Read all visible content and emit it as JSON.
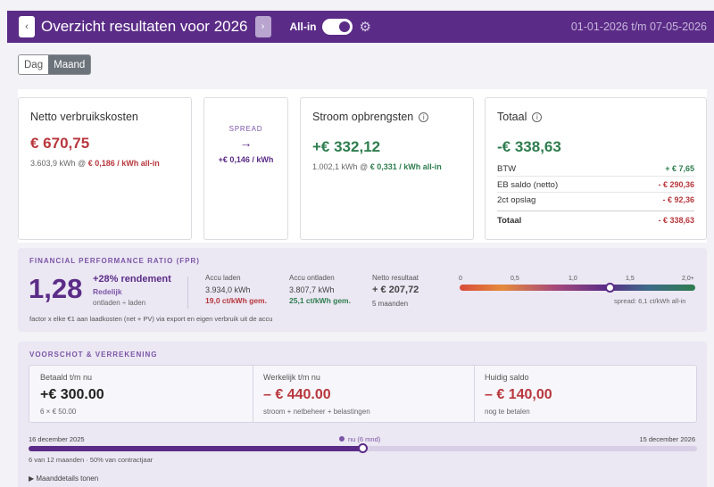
{
  "header": {
    "title": "Overzicht resultaten voor 2026",
    "prev_glyph": "‹",
    "next_glyph": "›",
    "allin_label": "All-in",
    "allin_on": true,
    "date_range": "01-01-2026 t/m 07-05-2026",
    "accent": "#5b2c87"
  },
  "view_toggle": {
    "options": [
      "Dag",
      "Maand"
    ],
    "selected": "Maand"
  },
  "cards": {
    "netto": {
      "title": "Netto verbruikskosten",
      "value": "€ 670,75",
      "kwh": "3.603,9 kWh @",
      "rate": "€ 0,186 / kWh all-in"
    },
    "spread": {
      "label": "SPREAD",
      "arrow": "→",
      "value": "+€ 0,146 / kWh"
    },
    "stroom": {
      "title": "Stroom opbrengsten",
      "value": "+€ 332,12",
      "kwh": "1.002,1 kWh @",
      "rate": "€ 0,331 / kWh all-in"
    },
    "totaal": {
      "title": "Totaal",
      "value": "-€ 338,63",
      "rows": [
        {
          "label": "BTW",
          "value": "+ € 7,65"
        },
        {
          "label": "EB saldo (netto)",
          "value": "- € 290,36"
        },
        {
          "label": "2ct opslag",
          "value": "- € 92,36"
        }
      ],
      "total_label": "Totaal",
      "total_value": "- € 338,63"
    }
  },
  "fpr": {
    "section_title": "FINANCIAL PERFORMANCE RATIO (FPR)",
    "value": "1,28",
    "rendement": "+28% rendement",
    "label": "Redelijk",
    "sub": "ontladen ÷ laden",
    "metrics": [
      {
        "head": "Accu laden",
        "value": "3.934,0 kWh",
        "sub": "19,0 ct/kWh gem."
      },
      {
        "head": "Accu ontladen",
        "value": "3.807,7 kWh",
        "sub": "25,1 ct/kWh gem."
      },
      {
        "head": "Netto resultaat",
        "value": "+ € 207,72",
        "sub": "5 maanden"
      }
    ],
    "scale_labels": [
      "0",
      "0,5",
      "1,0",
      "1,5",
      "2,0+"
    ],
    "spread_note": "spread: 6,1 ct/kWh all-in",
    "footnote": "factor x elke €1 aan laadkosten (net + PV) via export en eigen verbruik uit de accu"
  },
  "voorschot": {
    "section_title": "VOORSCHOT & VERREKENING",
    "columns": [
      {
        "head": "Betaald t/m nu",
        "value": "+€ 300.00",
        "sub": "6 × € 50.00"
      },
      {
        "head": "Werkelijk t/m nu",
        "value": "– € 440.00",
        "sub": "stroom + netbeheer + belastingen"
      },
      {
        "head": "Huidig saldo",
        "value": "– € 140,00",
        "sub": "nog te betalen"
      }
    ],
    "timeline": {
      "start": "16 december 2025",
      "end": "15 december 2026",
      "now_label": "nu (6 mnd)",
      "progress_fraction": 0.5,
      "sub": "6 van 12 maanden · 50% van contractjaar"
    },
    "details_toggle": "▶ Maanddetails tonen"
  }
}
